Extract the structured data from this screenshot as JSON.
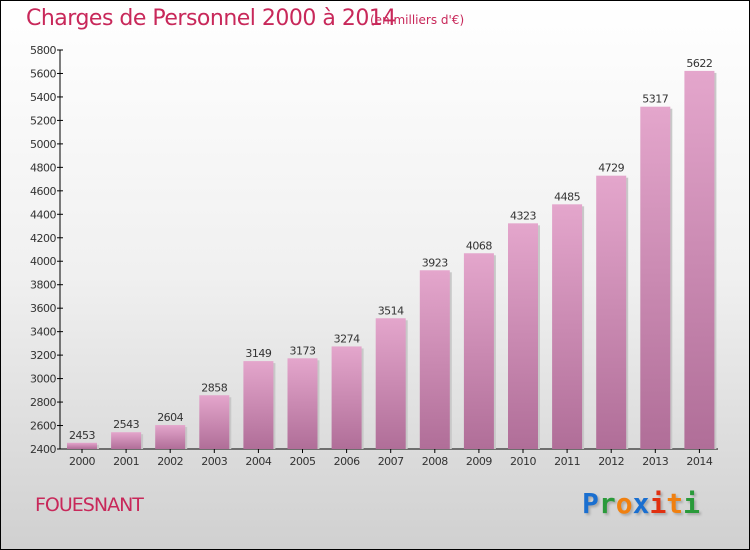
{
  "chart_data": {
    "type": "bar",
    "title": "Charges de Personnel 2000 à 2014",
    "subtitle": "(en milliers d'€)",
    "categories": [
      "2000",
      "2001",
      "2002",
      "2003",
      "2004",
      "2005",
      "2006",
      "2007",
      "2008",
      "2009",
      "2010",
      "2011",
      "2012",
      "2013",
      "2014"
    ],
    "values": [
      2453,
      2543,
      2604,
      2858,
      3149,
      3173,
      3274,
      3514,
      3923,
      4068,
      4323,
      4485,
      4729,
      5317,
      5622
    ],
    "ylim": [
      2400,
      5800
    ],
    "yticks": [
      2400,
      2600,
      2800,
      3000,
      3200,
      3400,
      3600,
      3800,
      4000,
      4200,
      4400,
      4600,
      4800,
      5000,
      5200,
      5400,
      5600,
      5800
    ],
    "xlabel": "",
    "ylabel": "",
    "bar_color_top": "#e4a6cc",
    "bar_color_bottom": "#b06e98"
  },
  "footer": {
    "city": "FOUESNANT",
    "logo": "Proxiti"
  }
}
